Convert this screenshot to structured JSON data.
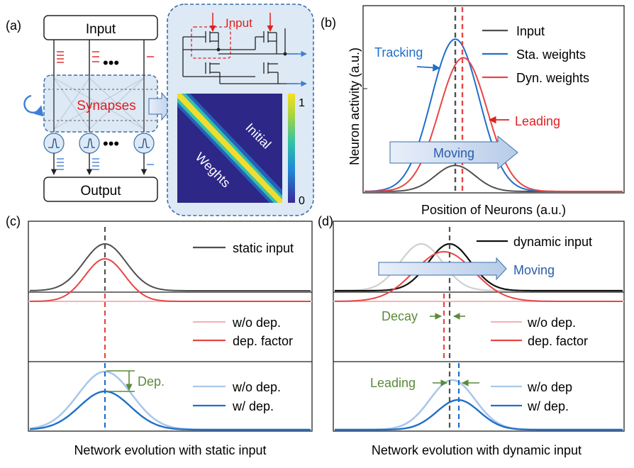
{
  "panels": {
    "a": {
      "tag": "(a)",
      "input_box": "Input",
      "output_box": "Output",
      "synapses_label": "Synapses",
      "ellipsis": "•••",
      "circuit_input_label": "Input",
      "heatmap_text_1": "Initial",
      "heatmap_text_2": "Weghts",
      "colorbar_max": "1",
      "colorbar_min": "0"
    },
    "b": {
      "tag": "(b)",
      "ylabel": "Neuron activity (a.u.)",
      "xlabel": "Position of Neurons (a.u.)",
      "legend": [
        "Input",
        "Sta. weights",
        "Dyn. weights"
      ],
      "tracking_label": "Tracking",
      "leading_label": "Leading",
      "moving_label": "Moving"
    },
    "c": {
      "tag": "(c)",
      "legend_top": "static input",
      "legend_mid": [
        "w/o dep.",
        "dep. factor"
      ],
      "legend_bot": [
        "w/o dep.",
        "w/ dep."
      ],
      "dep_label": "Dep.",
      "caption": "Network evolution with static input"
    },
    "d": {
      "tag": "(d)",
      "legend_top": "dynamic input",
      "moving_label": "Moving",
      "legend_mid": [
        "w/o dep.",
        "dep. factor"
      ],
      "legend_bot": [
        "w/o dep",
        "w/ dep."
      ],
      "decay_label": "Decay",
      "leading_label": "Leading",
      "caption": "Network evolution with dynamic input"
    }
  },
  "colors": {
    "input_gray": "#505050",
    "static_blue": "#1f6fc9",
    "dynamic_red": "#e84545",
    "light_red": "#f5b5b5",
    "light_blue": "#a9c8ea",
    "green": "#5b8a3a",
    "panel_fill": "#dde9f5",
    "panel_border": "#3a6ea5",
    "arrow_fill": "#c9d9ee"
  },
  "chart_data": [
    {
      "type": "line",
      "panel": "b",
      "xlabel": "Position of Neurons (a.u.)",
      "ylabel": "Neuron activity (a.u.)",
      "series": [
        {
          "name": "Input",
          "peak": 0.14,
          "center": 0.0
        },
        {
          "name": "Sta. weights",
          "peak": 0.82,
          "center": 0.0
        },
        {
          "name": "Dyn. weights",
          "peak": 0.72,
          "center": 0.08
        }
      ]
    }
  ]
}
